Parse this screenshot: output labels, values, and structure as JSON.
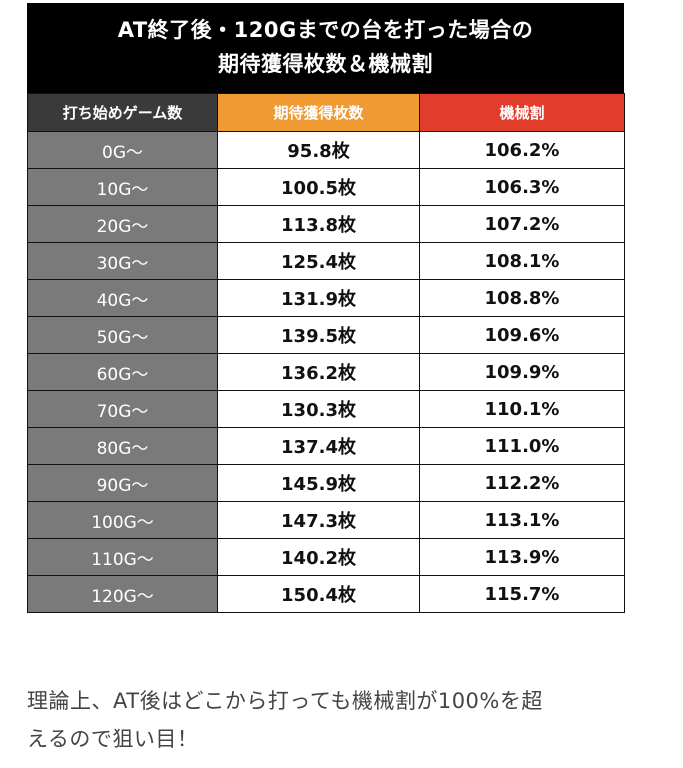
{
  "title": {
    "line1": "AT終了後・120Gまでの台を打った場合の",
    "line2": "期待獲得枚数＆機械割"
  },
  "table": {
    "headers": [
      "打ち始めゲーム数",
      "期待獲得枚数",
      "機械割"
    ],
    "rows": [
      [
        "0G〜",
        "95.8枚",
        "106.2%"
      ],
      [
        "10G〜",
        "100.5枚",
        "106.3%"
      ],
      [
        "20G〜",
        "113.8枚",
        "107.2%"
      ],
      [
        "30G〜",
        "125.4枚",
        "108.1%"
      ],
      [
        "40G〜",
        "131.9枚",
        "108.8%"
      ],
      [
        "50G〜",
        "139.5枚",
        "109.6%"
      ],
      [
        "60G〜",
        "136.2枚",
        "109.9%"
      ],
      [
        "70G〜",
        "130.3枚",
        "110.1%"
      ],
      [
        "80G〜",
        "137.4枚",
        "111.0%"
      ],
      [
        "90G〜",
        "145.9枚",
        "112.2%"
      ],
      [
        "100G〜",
        "147.3枚",
        "113.1%"
      ],
      [
        "110G〜",
        "140.2枚",
        "113.9%"
      ],
      [
        "120G〜",
        "150.4枚",
        "115.7%"
      ]
    ]
  },
  "colors": {
    "title_bg": "#000000",
    "start_header_bg": "#3a3a3a",
    "expected_header_bg": "#ef9a33",
    "rate_header_bg": "#e23c2d",
    "start_cell_bg": "#7a7a7a"
  },
  "note": {
    "line1": "理論上、AT後はどこから打っても機械割が100%を超",
    "line2": "えるので狙い目！"
  }
}
